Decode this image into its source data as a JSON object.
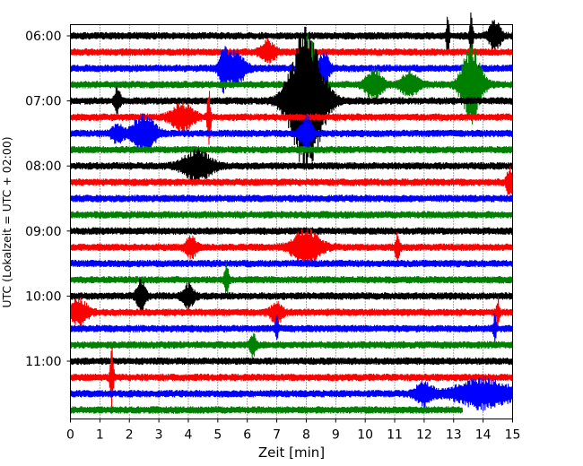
{
  "chart_data": {
    "type": "line",
    "subtype": "helicorder",
    "xlabel": "Zeit  [min]",
    "ylabel": "UTC (Lokalzeit = UTC + 02:00)",
    "xlim": [
      0,
      15
    ],
    "x_ticks": [
      "0",
      "1",
      "2",
      "3",
      "4",
      "5",
      "6",
      "7",
      "8",
      "9",
      "10",
      "11",
      "12",
      "13",
      "14",
      "15"
    ],
    "y_ticks": [
      {
        "label": "06:00",
        "row": 0
      },
      {
        "label": "07:00",
        "row": 4
      },
      {
        "label": "08:00",
        "row": 8
      },
      {
        "label": "09:00",
        "row": 12
      },
      {
        "label": "10:00",
        "row": 16
      },
      {
        "label": "11:00",
        "row": 20
      }
    ],
    "grid": {
      "vertical": true,
      "style": "dotted"
    },
    "row_minutes": 15,
    "start_time": "06:00",
    "last_row_end_min": 13.3,
    "colors": [
      "#000000",
      "#ff0000",
      "#0000ff",
      "#008000"
    ],
    "events": [
      {
        "row": 0,
        "t": 12.8,
        "amp": 0.7,
        "dur": 0.05
      },
      {
        "row": 0,
        "t": 13.6,
        "amp": 0.8,
        "dur": 0.05
      },
      {
        "row": 0,
        "t": 14.4,
        "amp": 0.5,
        "dur": 0.2
      },
      {
        "row": 1,
        "t": 6.7,
        "amp": 0.35,
        "dur": 0.25
      },
      {
        "row": 2,
        "t": 5.2,
        "amp": 0.6,
        "dur": 0.15
      },
      {
        "row": 2,
        "t": 5.6,
        "amp": 0.55,
        "dur": 0.35
      },
      {
        "row": 2,
        "t": 8.6,
        "amp": 0.5,
        "dur": 0.2
      },
      {
        "row": 3,
        "t": 10.3,
        "amp": 0.5,
        "dur": 0.3
      },
      {
        "row": 3,
        "t": 11.5,
        "amp": 0.4,
        "dur": 0.3
      },
      {
        "row": 3,
        "t": 13.6,
        "amp": 1.3,
        "dur": 0.35
      },
      {
        "row": 3,
        "t": 8.1,
        "amp": 1.8,
        "dur": 0.25
      },
      {
        "row": 4,
        "t": 1.6,
        "amp": 0.4,
        "dur": 0.1
      },
      {
        "row": 4,
        "t": 8.0,
        "amp": 2.4,
        "dur": 0.6
      },
      {
        "row": 5,
        "t": 3.8,
        "amp": 0.4,
        "dur": 0.4
      },
      {
        "row": 5,
        "t": 4.7,
        "amp": 0.9,
        "dur": 0.06
      },
      {
        "row": 6,
        "t": 2.5,
        "amp": 0.6,
        "dur": 0.4
      },
      {
        "row": 6,
        "t": 8.0,
        "amp": 0.55,
        "dur": 0.2
      },
      {
        "row": 6,
        "t": 1.6,
        "amp": 0.3,
        "dur": 0.2
      },
      {
        "row": 8,
        "t": 4.3,
        "amp": 0.5,
        "dur": 0.5
      },
      {
        "row": 9,
        "t": 14.9,
        "amp": 0.5,
        "dur": 0.1
      },
      {
        "row": 13,
        "t": 8.0,
        "amp": 0.55,
        "dur": 0.5
      },
      {
        "row": 13,
        "t": 4.1,
        "amp": 0.3,
        "dur": 0.2
      },
      {
        "row": 13,
        "t": 11.1,
        "amp": 0.45,
        "dur": 0.08
      },
      {
        "row": 15,
        "t": 5.3,
        "amp": 0.5,
        "dur": 0.08
      },
      {
        "row": 16,
        "t": 2.4,
        "amp": 0.55,
        "dur": 0.15
      },
      {
        "row": 16,
        "t": 4.0,
        "amp": 0.35,
        "dur": 0.2
      },
      {
        "row": 17,
        "t": 0.3,
        "amp": 0.4,
        "dur": 0.3
      },
      {
        "row": 17,
        "t": 7.0,
        "amp": 0.35,
        "dur": 0.2
      },
      {
        "row": 17,
        "t": 14.5,
        "amp": 0.45,
        "dur": 0.05
      },
      {
        "row": 18,
        "t": 7.0,
        "amp": 0.45,
        "dur": 0.05
      },
      {
        "row": 18,
        "t": 14.4,
        "amp": 0.45,
        "dur": 0.05
      },
      {
        "row": 19,
        "t": 6.2,
        "amp": 0.35,
        "dur": 0.1
      },
      {
        "row": 21,
        "t": 1.4,
        "amp": 1.0,
        "dur": 0.06
      },
      {
        "row": 22,
        "t": 12.0,
        "amp": 0.35,
        "dur": 0.3
      },
      {
        "row": 22,
        "t": 14.0,
        "amp": 0.45,
        "dur": 1.0
      }
    ]
  }
}
